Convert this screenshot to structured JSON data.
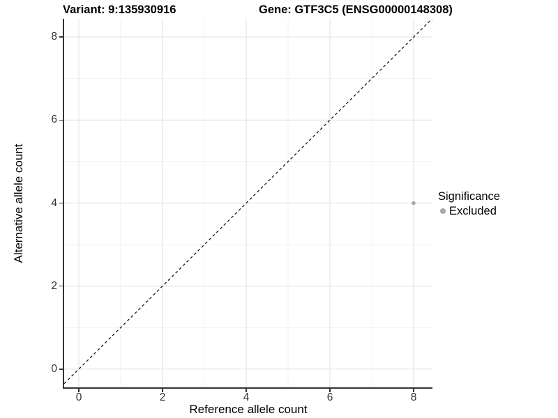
{
  "titles": {
    "variant": "Variant: 9:135930916",
    "gene": "Gene: GTF3C5 (ENSG00000148308)"
  },
  "chart_data": {
    "type": "scatter",
    "title_left": "Variant: 9:135930916",
    "title_right": "Gene: GTF3C5 (ENSG00000148308)",
    "xlabel": "Reference allele count",
    "ylabel": "Alternative allele count",
    "xlim": [
      -0.35,
      8.45
    ],
    "ylim": [
      -0.44,
      8.44
    ],
    "x_ticks": [
      0,
      2,
      4,
      6,
      8
    ],
    "y_ticks": [
      0,
      2,
      4,
      6,
      8
    ],
    "x_minor_ticks": [
      1,
      3,
      5,
      7
    ],
    "y_minor_ticks": [
      1,
      3,
      5,
      7
    ],
    "grid": true,
    "points": [
      {
        "x": 8,
        "y": 4,
        "series": "Excluded"
      }
    ],
    "reference_line": {
      "kind": "identity",
      "style": "dashed",
      "color": "#1a1a1a"
    },
    "legend": {
      "position": "right",
      "title": "Significance",
      "entries": [
        {
          "label": "Excluded",
          "color": "#a8a8a8"
        }
      ]
    },
    "colors": {
      "point": "#a8a8a8",
      "grid_major": "#e4e4e4",
      "grid_minor": "#f0f0f0",
      "axis_line": "#333333",
      "tick_text": "#333333"
    }
  }
}
